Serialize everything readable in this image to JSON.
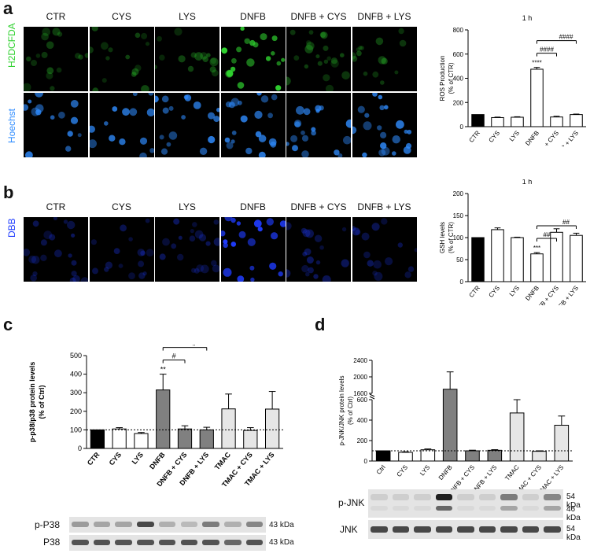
{
  "panel_a": {
    "letter": "a",
    "columns": [
      "CTR",
      "CYS",
      "LYS",
      "DNFB",
      "DNFB + CYS",
      "DNFB + LYS"
    ],
    "row_labels": [
      "H2DCFDA",
      "Hoechst"
    ],
    "row_colors": [
      "#2fd12f",
      "#2f8cff"
    ]
  },
  "panel_b": {
    "letter": "b",
    "columns": [
      "CTR",
      "CYS",
      "LYS",
      "DNFB",
      "DNFB + CYS",
      "DNFB + LYS"
    ],
    "row_labels": [
      "DBB"
    ],
    "row_colors": [
      "#1f3cff"
    ]
  },
  "panel_c": {
    "letter": "c"
  },
  "panel_d": {
    "letter": "d"
  },
  "blot_c": {
    "labels": [
      "p-P38",
      "P38"
    ],
    "kda": [
      "43 kDa",
      "43 kDa"
    ]
  },
  "blot_d": {
    "labels": [
      "p-JNK",
      "JNK"
    ],
    "kda": [
      "54 kDa",
      "46 kDa",
      "54 kDa"
    ]
  },
  "chart_data": [
    {
      "type": "bar",
      "title": "1 h",
      "ylabel": "ROS Production (% of CTR)",
      "categories": [
        "CTR",
        "CYS",
        "LYS",
        "DNFB",
        "DNFB + CYS",
        "DNFB + LYS"
      ],
      "values": [
        100,
        75,
        78,
        475,
        80,
        100
      ],
      "errors": [
        0,
        4,
        4,
        15,
        6,
        4
      ],
      "bar_colors": [
        "#000000",
        "#ffffff",
        "#ffffff",
        "#ffffff",
        "#ffffff",
        "#ffffff"
      ],
      "ylim": [
        0,
        800
      ],
      "yticks": [
        0,
        200,
        400,
        600,
        800
      ],
      "annotations": [
        "****",
        "####",
        "####"
      ]
    },
    {
      "type": "bar",
      "title": "1 h",
      "ylabel": "GSH levels (% of CTR)",
      "categories": [
        "CTR",
        "CYS",
        "LYS",
        "DNFB",
        "DNFB + CYS",
        "DNFB + LYS"
      ],
      "values": [
        100,
        118,
        100,
        63,
        112,
        105
      ],
      "errors": [
        0,
        4,
        1,
        3,
        8,
        5
      ],
      "bar_colors": [
        "#000000",
        "#ffffff",
        "#ffffff",
        "#ffffff",
        "#ffffff",
        "#ffffff"
      ],
      "ylim": [
        0,
        200
      ],
      "yticks": [
        0,
        50,
        100,
        150,
        200
      ],
      "annotations": [
        "***",
        "##",
        "##"
      ]
    },
    {
      "type": "bar",
      "ylabel": "p-p38/p38 protein levels (% of Ctrl)",
      "categories": [
        "CTR",
        "CYS",
        "LYS",
        "DNFB",
        "DNFB + CYS",
        "DNFB + LYS",
        "TMAC",
        "TMAC + CYS",
        "TMAC + LYS"
      ],
      "values": [
        100,
        105,
        80,
        315,
        105,
        100,
        213,
        97,
        212
      ],
      "errors": [
        0,
        7,
        6,
        85,
        17,
        14,
        80,
        15,
        95
      ],
      "bar_colors": [
        "#000000",
        "#ffffff",
        "#ffffff",
        "#808080",
        "#808080",
        "#808080",
        "#e6e6e6",
        "#e6e6e6",
        "#e6e6e6"
      ],
      "ylim": [
        0,
        500
      ],
      "yticks": [
        0,
        100,
        200,
        300,
        400,
        500
      ],
      "annotations": [
        "**",
        "#",
        "#"
      ]
    },
    {
      "type": "bar",
      "ylabel": "p-JNK/JNK protein levels (% of Ctrl)",
      "categories": [
        "Ctrl",
        "CYS",
        "LYS",
        "DNFB",
        "DNFB + CYS",
        "DNFB + LYS",
        "TMAC",
        "TMAC + CYS",
        "TMAC + LYS"
      ],
      "values": [
        100,
        85,
        110,
        1700,
        100,
        105,
        470,
        95,
        350
      ],
      "errors": [
        0,
        5,
        8,
        420,
        6,
        6,
        130,
        5,
        90
      ],
      "bar_colors": [
        "#000000",
        "#ffffff",
        "#ffffff",
        "#808080",
        "#808080",
        "#808080",
        "#e6e6e6",
        "#e6e6e6",
        "#e6e6e6"
      ],
      "yticks": [
        0,
        200,
        400,
        600,
        1600,
        2000,
        2400
      ],
      "axis_break": true
    }
  ]
}
